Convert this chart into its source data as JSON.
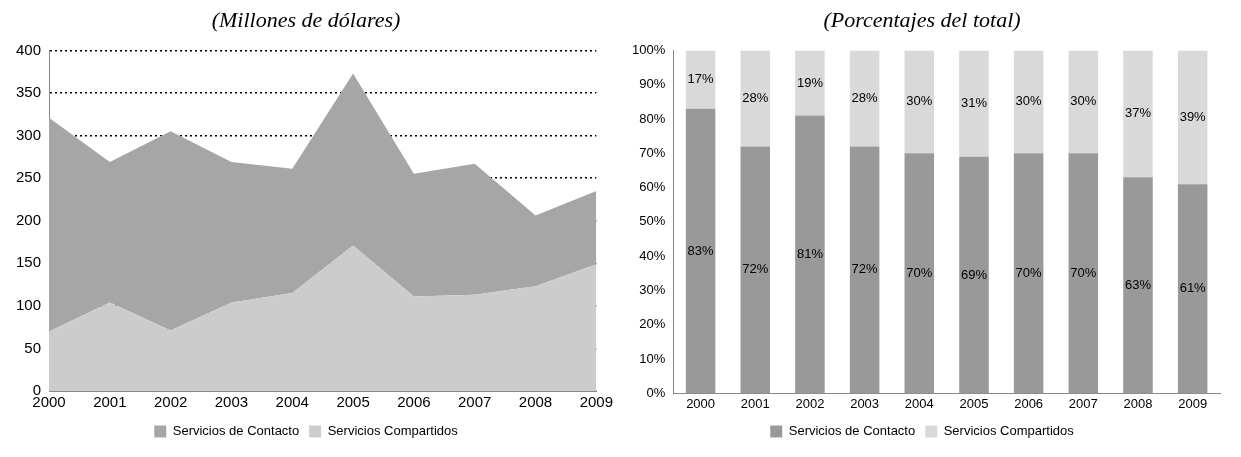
{
  "chart_data": [
    {
      "type": "area",
      "title": "(Millones de dólares)",
      "stacked": true,
      "categories": [
        "2000",
        "2001",
        "2002",
        "2003",
        "2004",
        "2005",
        "2006",
        "2007",
        "2008",
        "2009"
      ],
      "series": [
        {
          "name": "Servicios Compartidos",
          "color": "#cccccc",
          "values": [
            70,
            104,
            71,
            104,
            115,
            171,
            111,
            113,
            123,
            149
          ]
        },
        {
          "name": "Servicios de Contacto",
          "color": "#a6a6a6",
          "values": [
            251,
            165,
            234,
            165,
            146,
            202,
            144,
            154,
            83,
            86
          ]
        }
      ],
      "ylim": [
        0,
        400
      ],
      "yticks": [
        0,
        50,
        100,
        150,
        200,
        250,
        300,
        350,
        400
      ],
      "grid": "y",
      "legend": "bottom"
    },
    {
      "type": "bar",
      "title": "(Porcentajes del total)",
      "stacked": true,
      "categories": [
        "2000",
        "2001",
        "2002",
        "2003",
        "2004",
        "2005",
        "2006",
        "2007",
        "2008",
        "2009"
      ],
      "series": [
        {
          "name": "Servicios de Contacto",
          "color": "#999999",
          "values": [
            83,
            72,
            81,
            72,
            70,
            69,
            70,
            70,
            63,
            61
          ],
          "value_labels": [
            "83%",
            "72%",
            "81%",
            "72%",
            "70%",
            "69%",
            "70%",
            "70%",
            "63%",
            "61%"
          ]
        },
        {
          "name": "Servicios Compartidos",
          "color": "#d9d9d9",
          "values": [
            17,
            28,
            19,
            28,
            30,
            31,
            30,
            30,
            37,
            39
          ],
          "value_labels": [
            "17%",
            "28%",
            "19%",
            "28%",
            "30%",
            "31%",
            "30%",
            "30%",
            "37%",
            "39%"
          ]
        }
      ],
      "ylim": [
        0,
        100
      ],
      "yticks": [
        {
          "value": 0,
          "label": "0%"
        },
        {
          "value": 10,
          "label": "10%"
        },
        {
          "value": 20,
          "label": "20%"
        },
        {
          "value": 30,
          "label": "30%"
        },
        {
          "value": 40,
          "label": "40%"
        },
        {
          "value": 50,
          "label": "50%"
        },
        {
          "value": 60,
          "label": "60%"
        },
        {
          "value": 70,
          "label": "70%"
        },
        {
          "value": 80,
          "label": "80%"
        },
        {
          "value": 90,
          "label": "90%"
        },
        {
          "value": 100,
          "label": "100%"
        }
      ],
      "grid": false,
      "legend": "bottom"
    }
  ]
}
